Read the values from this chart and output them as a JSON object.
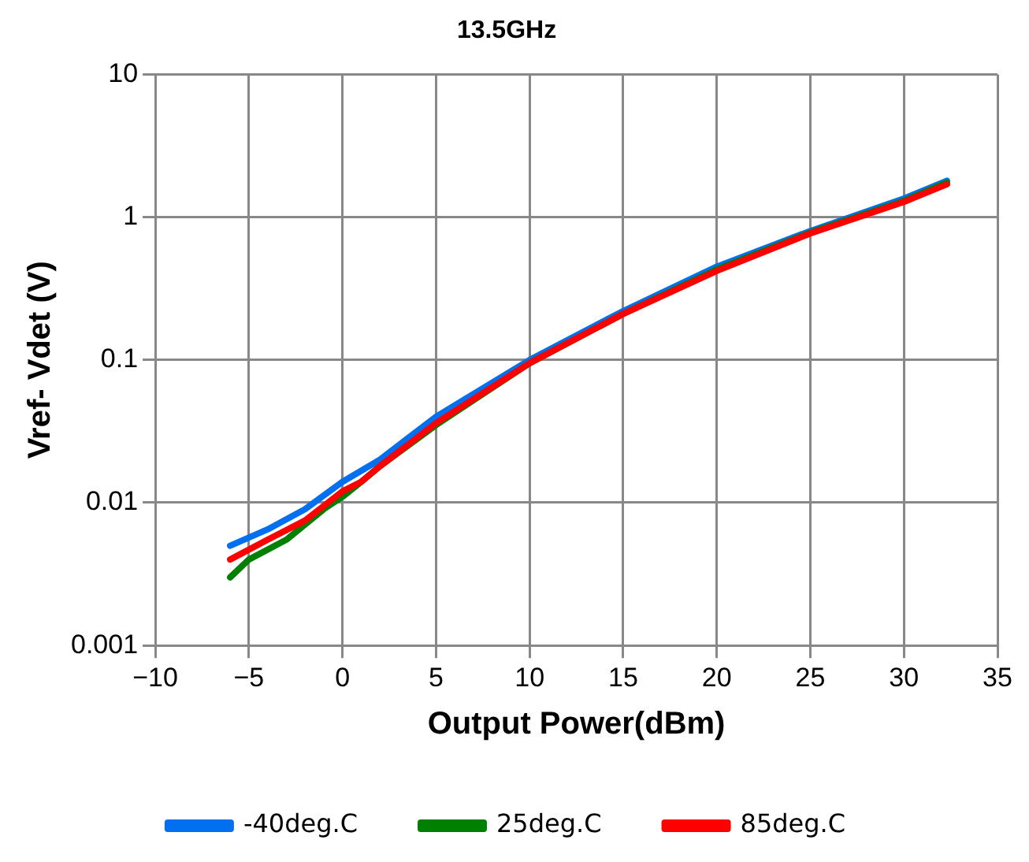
{
  "chart_data": {
    "type": "line",
    "title": "13.5GHz",
    "xlabel": "Output Power(dBm)",
    "ylabel": "Vref- Vdet (V)",
    "log": "y",
    "grid": true,
    "legend": "bottom",
    "marker": "none",
    "line_style": "solid",
    "xlim": [
      -10,
      35
    ],
    "xticks": [
      {
        "value": -10,
        "label": "−10"
      },
      {
        "value": -5,
        "label": "−5"
      },
      0,
      5,
      10,
      15,
      20,
      25,
      30,
      35
    ],
    "ylim": [
      0.001,
      10
    ],
    "yticks": [
      0.001,
      0.01,
      0.1,
      1,
      10
    ],
    "series": [
      {
        "name": "-40deg.C",
        "color": "#0070f0",
        "x": [
          -6,
          -4,
          -2,
          0,
          2,
          5,
          10,
          15,
          20,
          25,
          30,
          32.3
        ],
        "values": [
          0.005,
          0.0065,
          0.009,
          0.014,
          0.02,
          0.04,
          0.1,
          0.22,
          0.45,
          0.8,
          1.35,
          1.8
        ]
      },
      {
        "name": "25deg.C",
        "color": "#008000",
        "x": [
          -6,
          -5,
          -3,
          -1,
          0,
          1,
          2,
          5,
          10,
          15,
          20,
          25,
          30,
          32.3
        ],
        "values": [
          0.003,
          0.004,
          0.0055,
          0.009,
          0.011,
          0.014,
          0.018,
          0.035,
          0.095,
          0.21,
          0.43,
          0.78,
          1.3,
          1.75
        ]
      },
      {
        "name": "85deg.C",
        "color": "#ff0000",
        "x": [
          -6,
          -4,
          -2,
          0,
          1,
          2,
          5,
          10,
          15,
          20,
          25,
          30,
          32.3
        ],
        "values": [
          0.004,
          0.0055,
          0.0075,
          0.012,
          0.014,
          0.018,
          0.036,
          0.095,
          0.21,
          0.42,
          0.77,
          1.28,
          1.7
        ]
      }
    ]
  }
}
